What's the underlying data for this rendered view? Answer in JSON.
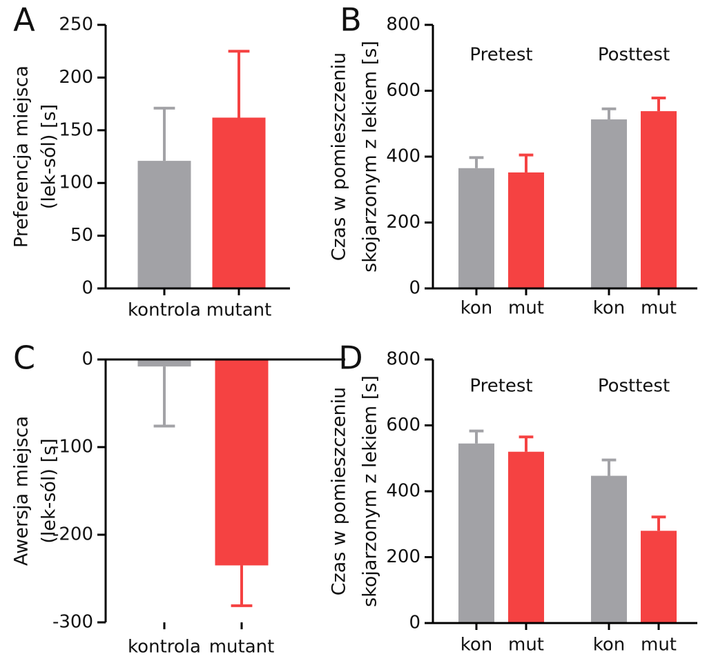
{
  "chart_data": [
    {
      "type": "bar",
      "panel": "A",
      "ylabel": [
        "Preferencja miejsca",
        "(lek-sól) [s]"
      ],
      "categories": [
        "kontrola",
        "mutant"
      ],
      "values": [
        121,
        162
      ],
      "errors": [
        50,
        63
      ],
      "colors": [
        "#a2a2a6",
        "#f54242"
      ],
      "ylim": [
        0,
        250
      ],
      "yticks": [
        0,
        50,
        100,
        150,
        200,
        250
      ]
    },
    {
      "type": "bar",
      "panel": "B",
      "ylabel": [
        "Czas w pomieszczeniu",
        "skojarzonym z lekiem [s]"
      ],
      "groups": [
        "Pretest",
        "Posttest"
      ],
      "categories": [
        "kon",
        "mut",
        "kon",
        "mut"
      ],
      "values": [
        365,
        352,
        513,
        538
      ],
      "errors": [
        32,
        53,
        32,
        40
      ],
      "colors": [
        "#a2a2a6",
        "#f54242",
        "#a2a2a6",
        "#f54242"
      ],
      "ylim": [
        0,
        800
      ],
      "yticks": [
        0,
        200,
        400,
        600,
        800
      ]
    },
    {
      "type": "bar",
      "panel": "C",
      "ylabel": [
        "Awersja miejsca",
        "(lek-sól) [s]"
      ],
      "categories": [
        "kontrola",
        "mutant"
      ],
      "values": [
        -8,
        -235
      ],
      "errors": [
        68,
        46
      ],
      "colors": [
        "#a2a2a6",
        "#f54242"
      ],
      "ylim": [
        -300,
        0
      ],
      "yticks": [
        -300,
        -200,
        -100,
        0
      ]
    },
    {
      "type": "bar",
      "panel": "D",
      "ylabel": [
        "Czas w pomieszczeniu",
        "skojarzonym z lekiem [s]"
      ],
      "groups": [
        "Pretest",
        "Posttest"
      ],
      "categories": [
        "kon",
        "mut",
        "kon",
        "mut"
      ],
      "values": [
        545,
        520,
        447,
        280
      ],
      "errors": [
        38,
        45,
        48,
        42
      ],
      "colors": [
        "#a2a2a6",
        "#f54242",
        "#a2a2a6",
        "#f54242"
      ],
      "ylim": [
        0,
        800
      ],
      "yticks": [
        0,
        200,
        400,
        600,
        800
      ]
    }
  ]
}
